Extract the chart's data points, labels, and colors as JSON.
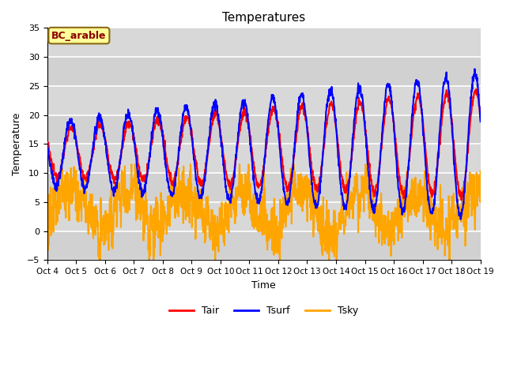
{
  "title": "Temperatures",
  "xlabel": "Time",
  "ylabel": "Temperature",
  "ylim": [
    -5,
    35
  ],
  "annotation": "BC_arable",
  "series": {
    "Tair": {
      "color": "#ff0000",
      "linewidth": 1.5
    },
    "Tsurf": {
      "color": "#0000ff",
      "linewidth": 1.5
    },
    "Tsky": {
      "color": "#FFA500",
      "linewidth": 1.5
    }
  },
  "xtick_labels": [
    "Oct 4",
    "Oct 5",
    "Oct 6",
    "Oct 7",
    "Oct 8",
    "Oct 9",
    "Oct 10",
    "Oct 11",
    "Oct 12",
    "Oct 13",
    "Oct 14",
    "Oct 15",
    "Oct 16",
    "Oct 17",
    "Oct 18",
    "Oct 19"
  ],
  "ytick_values": [
    -5,
    0,
    5,
    10,
    15,
    20,
    25,
    30,
    35
  ],
  "background_color": "#d8d8d8",
  "grid_color": "#ffffff",
  "title_fontsize": 11,
  "figsize": [
    6.4,
    4.8
  ],
  "dpi": 100
}
